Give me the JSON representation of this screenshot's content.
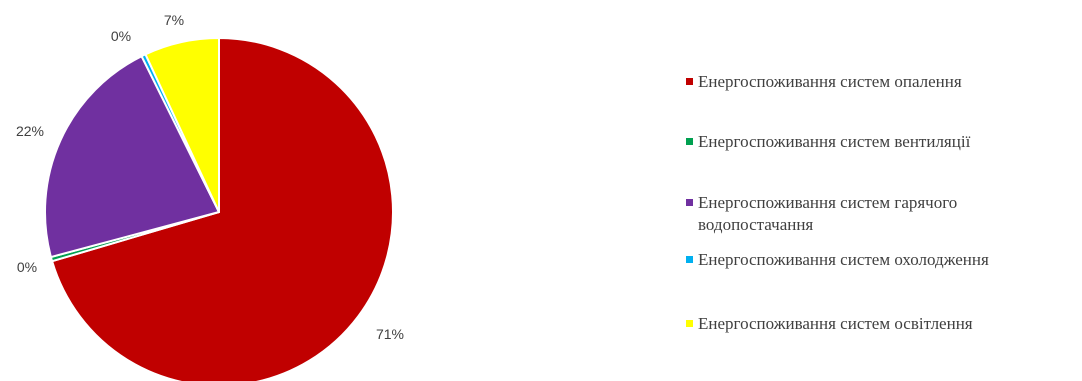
{
  "chart_data": {
    "type": "pie",
    "categories": [
      "Енергоспоживання систем опалення",
      "Енергоспоживання систем вентиляції",
      "Енергоспоживання систем гарячого водопостачання",
      "Енергоспоживання систем охолодження",
      "Енергоспоживання систем освітлення"
    ],
    "values": [
      71,
      0,
      22,
      0,
      7
    ],
    "value_labels": [
      "71%",
      "0%",
      "22%",
      "0%",
      "7%"
    ],
    "colors": [
      "#C00000",
      "#00A050",
      "#7030A0",
      "#00B0F0",
      "#FFFF00"
    ],
    "legend_position": "right",
    "title": ""
  }
}
